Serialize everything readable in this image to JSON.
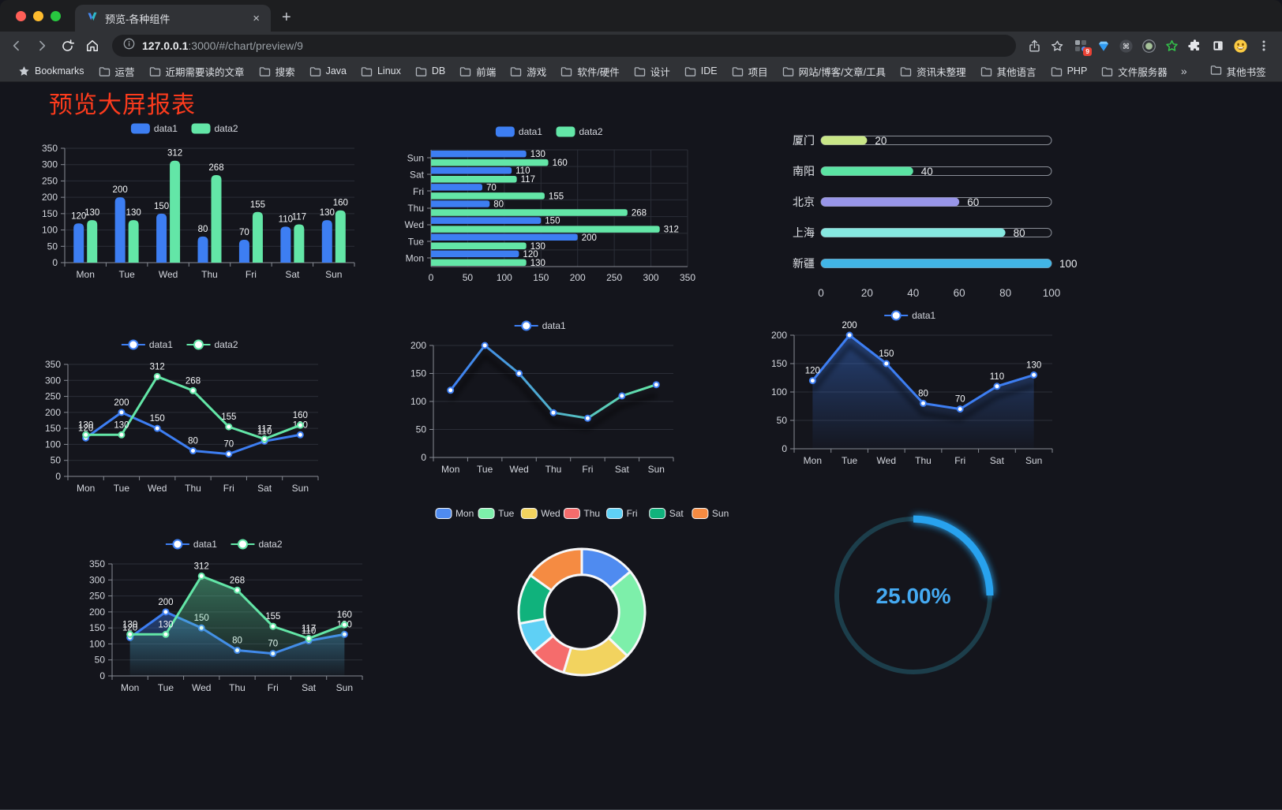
{
  "browser": {
    "tab": {
      "title": "预览-各种组件",
      "close_glyph": "×",
      "new_tab_glyph": "+"
    },
    "url": {
      "host": "127.0.0.1",
      "path": ":3000/#/chart/preview/9"
    },
    "extensions_badge": "9",
    "bookmarks_bar": {
      "items": [
        {
          "icon": "star",
          "label": "Bookmarks"
        },
        {
          "icon": "folder",
          "label": "运营"
        },
        {
          "icon": "folder",
          "label": "近期需要读的文章"
        },
        {
          "icon": "folder",
          "label": "搜索"
        },
        {
          "icon": "folder",
          "label": "Java"
        },
        {
          "icon": "folder",
          "label": "Linux"
        },
        {
          "icon": "folder",
          "label": "DB"
        },
        {
          "icon": "folder",
          "label": "前端"
        },
        {
          "icon": "folder",
          "label": "游戏"
        },
        {
          "icon": "folder",
          "label": "软件/硬件"
        },
        {
          "icon": "folder",
          "label": "设计"
        },
        {
          "icon": "folder",
          "label": "IDE"
        },
        {
          "icon": "folder",
          "label": "项目"
        },
        {
          "icon": "folder",
          "label": "网站/博客/文章/工具"
        },
        {
          "icon": "folder",
          "label": "资讯未整理"
        },
        {
          "icon": "folder",
          "label": "其他语言"
        },
        {
          "icon": "folder",
          "label": "PHP"
        },
        {
          "icon": "folder",
          "label": "文件服务器"
        }
      ],
      "overflow_chevron": "»",
      "other_bookmarks": {
        "icon": "folder",
        "label": "其他书签"
      }
    }
  },
  "page": {
    "title": "预览大屏报表",
    "title_color": "#FC3B1D",
    "background": "#14151C"
  },
  "chart_data": [
    {
      "id": "grouped-bar",
      "type": "bar",
      "categories": [
        "Mon",
        "Tue",
        "Wed",
        "Thu",
        "Fri",
        "Sat",
        "Sun"
      ],
      "series": [
        {
          "name": "data1",
          "color": "#3D7EF2",
          "values": [
            120,
            200,
            150,
            80,
            70,
            110,
            130
          ]
        },
        {
          "name": "data2",
          "color": "#63E6A7",
          "values": [
            130,
            130,
            312,
            268,
            155,
            117,
            160
          ]
        }
      ],
      "ylim": [
        0,
        350
      ],
      "ytick_step": 50,
      "legend_position": "top",
      "value_labels": true,
      "grid": true
    },
    {
      "id": "grouped-hbar",
      "type": "hbar",
      "categories": [
        "Mon",
        "Tue",
        "Wed",
        "Thu",
        "Fri",
        "Sat",
        "Sun"
      ],
      "series": [
        {
          "name": "data1",
          "color": "#3D7EF2",
          "values": [
            120,
            200,
            150,
            80,
            70,
            110,
            130
          ]
        },
        {
          "name": "data2",
          "color": "#63E6A7",
          "values": [
            130,
            130,
            312,
            268,
            155,
            117,
            160
          ]
        }
      ],
      "xlim": [
        0,
        350
      ],
      "xtick_step": 50,
      "legend_position": "top",
      "value_labels": true,
      "grid": true
    },
    {
      "id": "progress-list",
      "type": "progress",
      "max": 100,
      "ticks": [
        0,
        20,
        40,
        60,
        80,
        100
      ],
      "items": [
        {
          "label": "厦门",
          "value": 20,
          "color": "#C9E687"
        },
        {
          "label": "南阳",
          "value": 40,
          "color": "#5BE3A3"
        },
        {
          "label": "北京",
          "value": 60,
          "color": "#9895E8"
        },
        {
          "label": "上海",
          "value": 80,
          "color": "#86E8E0"
        },
        {
          "label": "新疆",
          "value": 100,
          "color": "#41B5E6"
        }
      ]
    },
    {
      "id": "two-line",
      "type": "line",
      "categories": [
        "Mon",
        "Tue",
        "Wed",
        "Thu",
        "Fri",
        "Sat",
        "Sun"
      ],
      "series": [
        {
          "name": "data1",
          "color": "#3D7EF2",
          "values": [
            120,
            200,
            150,
            80,
            70,
            110,
            130
          ],
          "marker": true,
          "labels": true
        },
        {
          "name": "data2",
          "color": "#63E6A7",
          "values": [
            130,
            130,
            312,
            268,
            155,
            117,
            160
          ],
          "marker": true,
          "labels": true
        }
      ],
      "ylim": [
        0,
        350
      ],
      "ytick_step": 50,
      "legend_position": "top",
      "grid": true
    },
    {
      "id": "gradient-line",
      "type": "line",
      "categories": [
        "Mon",
        "Tue",
        "Wed",
        "Thu",
        "Fri",
        "Sat",
        "Sun"
      ],
      "series": [
        {
          "name": "data1",
          "color": "#3D7EF2",
          "gradient": [
            "#3D7EF2",
            "#63E6A7"
          ],
          "values": [
            120,
            200,
            150,
            80,
            70,
            110,
            130
          ],
          "marker": true,
          "labels": false,
          "shadow": true
        }
      ],
      "ylim": [
        0,
        200
      ],
      "ytick_step": 50,
      "legend_position": "top",
      "grid": true
    },
    {
      "id": "area-line",
      "type": "line",
      "categories": [
        "Mon",
        "Tue",
        "Wed",
        "Thu",
        "Fri",
        "Sat",
        "Sun"
      ],
      "series": [
        {
          "name": "data1",
          "color": "#3D7EF2",
          "values": [
            120,
            200,
            150,
            80,
            70,
            110,
            130
          ],
          "marker": true,
          "labels": true,
          "area": true,
          "shadow": true
        }
      ],
      "ylim": [
        0,
        200
      ],
      "ytick_step": 50,
      "legend_position": "top",
      "grid": true
    },
    {
      "id": "two-area-line",
      "type": "line",
      "categories": [
        "Mon",
        "Tue",
        "Wed",
        "Thu",
        "Fri",
        "Sat",
        "Sun"
      ],
      "series": [
        {
          "name": "data1",
          "color": "#3D7EF2",
          "values": [
            120,
            200,
            150,
            80,
            70,
            110,
            130
          ],
          "marker": true,
          "labels": true,
          "area": true
        },
        {
          "name": "data2",
          "color": "#63E6A7",
          "values": [
            130,
            130,
            312,
            268,
            155,
            117,
            160
          ],
          "marker": true,
          "labels": true,
          "area": true
        }
      ],
      "ylim": [
        0,
        350
      ],
      "ytick_step": 50,
      "legend_position": "top",
      "grid": true
    },
    {
      "id": "donut",
      "type": "pie",
      "categories": [
        "Mon",
        "Tue",
        "Wed",
        "Thu",
        "Fri",
        "Sat",
        "Sun"
      ],
      "values": [
        120,
        200,
        150,
        80,
        70,
        110,
        130
      ],
      "colors": [
        "#4F8BF0",
        "#7DEFAA",
        "#F2D35F",
        "#F56C6C",
        "#5FD0F5",
        "#10B27C",
        "#F58B42"
      ],
      "inner_radius_ratio": 0.59,
      "legend_position": "top"
    },
    {
      "id": "gauge",
      "type": "gauge",
      "value": 25,
      "max": 100,
      "display": "25.00%",
      "color": "#28A2EE",
      "track_color": "#1C3E4B",
      "text_color": "#45AAF2"
    }
  ]
}
